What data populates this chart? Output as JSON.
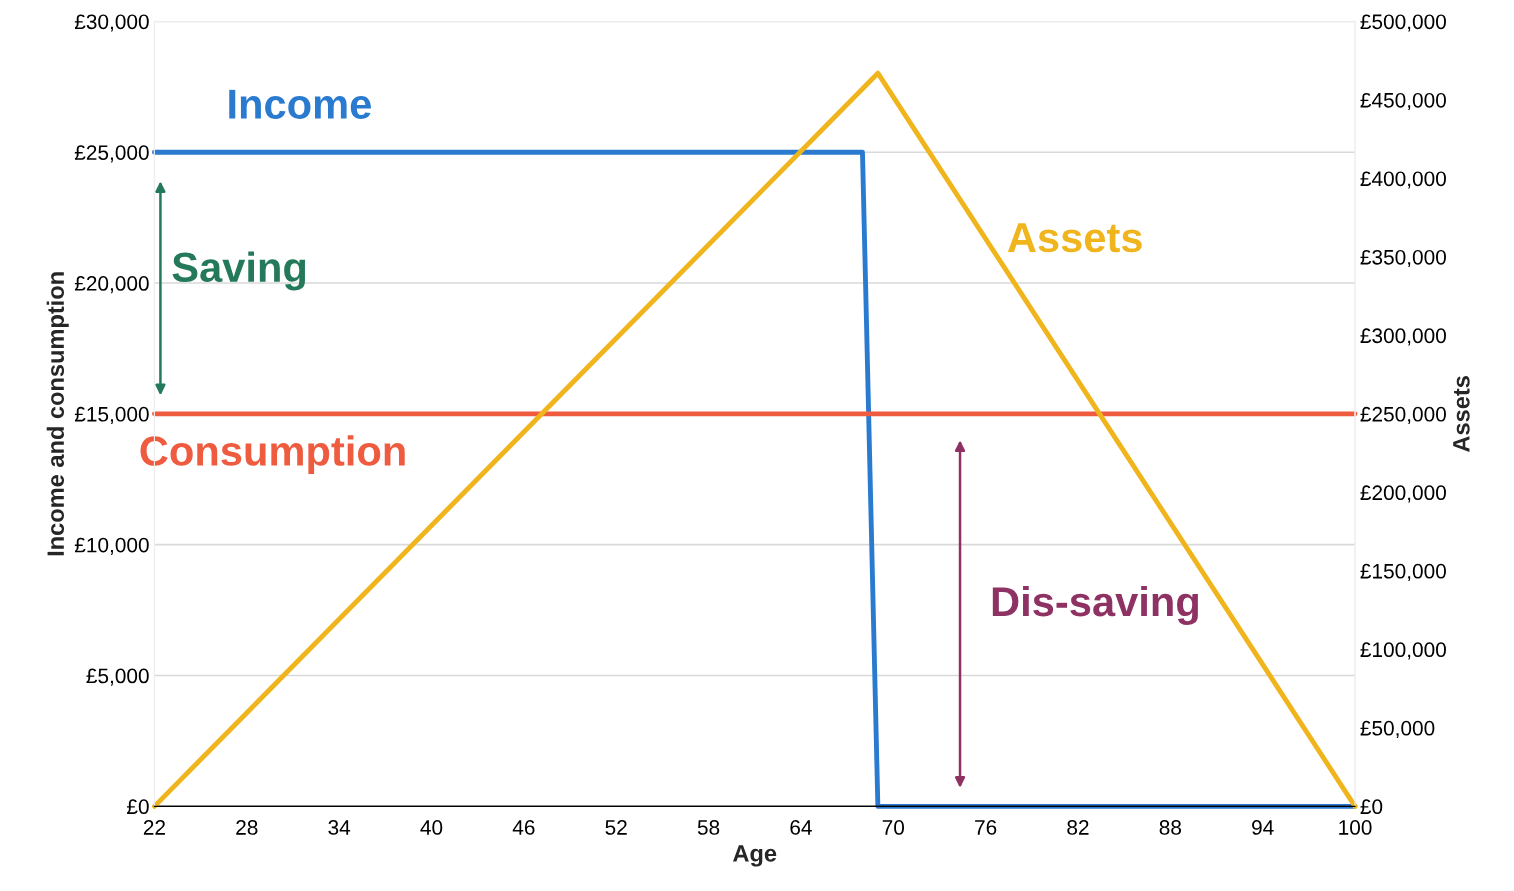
{
  "chart_data": {
    "type": "line",
    "xlabel": "Age",
    "ylabel": "Income and consumption",
    "y2label": "Assets",
    "xlim": [
      22,
      100
    ],
    "xticks": [
      22,
      28,
      34,
      40,
      46,
      52,
      58,
      64,
      70,
      76,
      82,
      88,
      94,
      100
    ],
    "ylim": [
      0,
      30000
    ],
    "yticks": [
      {
        "value": 0,
        "label": "£0"
      },
      {
        "value": 5000,
        "label": "£5,000"
      },
      {
        "value": 10000,
        "label": "£10,000"
      },
      {
        "value": 15000,
        "label": "£15,000"
      },
      {
        "value": 20000,
        "label": "£20,000"
      },
      {
        "value": 25000,
        "label": "£25,000"
      },
      {
        "value": 30000,
        "label": "£30,000"
      }
    ],
    "y2lim": [
      0,
      500000
    ],
    "y2ticks": [
      {
        "value": 0,
        "label": "£0"
      },
      {
        "value": 50000,
        "label": "£50,000"
      },
      {
        "value": 100000,
        "label": "£100,000"
      },
      {
        "value": 150000,
        "label": "£150,000"
      },
      {
        "value": 200000,
        "label": "£200,000"
      },
      {
        "value": 250000,
        "label": "£250,000"
      },
      {
        "value": 300000,
        "label": "£300,000"
      },
      {
        "value": 350000,
        "label": "£350,000"
      },
      {
        "value": 400000,
        "label": "£400,000"
      },
      {
        "value": 450000,
        "label": "£450,000"
      },
      {
        "value": 500000,
        "label": "£500,000"
      }
    ],
    "grid": "y",
    "series": [
      {
        "name": "Income",
        "color": "#2a7bcf",
        "x": [
          22,
          68,
          69,
          100
        ],
        "values": [
          25000,
          25000,
          0,
          0
        ]
      },
      {
        "name": "Consumption",
        "color": "#ef5b3f",
        "x": [
          22,
          100
        ],
        "values": [
          15000,
          15000
        ]
      },
      {
        "name": "Assets",
        "color": "#f0b51c",
        "axis": "y2",
        "x": [
          22,
          69,
          100
        ],
        "values": [
          0,
          467000,
          0
        ]
      }
    ],
    "annotations": [
      "Saving",
      "Dis-saving"
    ]
  }
}
